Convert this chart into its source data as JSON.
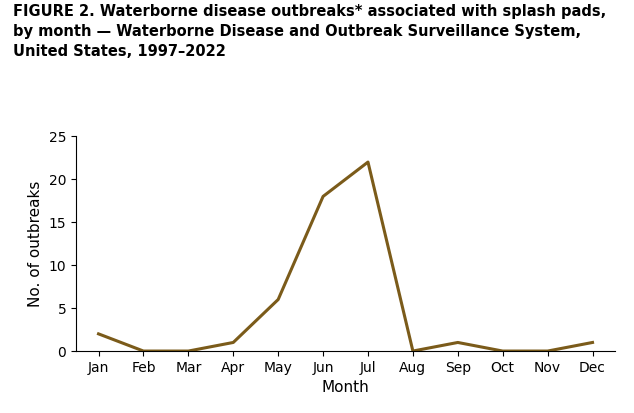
{
  "months": [
    "Jan",
    "Feb",
    "Mar",
    "Apr",
    "May",
    "Jun",
    "Jul",
    "Aug",
    "Sep",
    "Oct",
    "Nov",
    "Dec"
  ],
  "values": [
    2,
    0,
    0,
    1,
    6,
    18,
    22,
    0,
    1,
    0,
    0,
    1
  ],
  "line_color": "#7B5B1A",
  "line_width": 2.2,
  "ylim": [
    0,
    25
  ],
  "yticks": [
    0,
    5,
    10,
    15,
    20,
    25
  ],
  "ylabel": "No. of outbreaks",
  "xlabel": "Month",
  "title_line1": "FIGURE 2. Waterborne disease outbreaks* associated with splash pads,",
  "title_line2": "by month — Waterborne Disease and Outbreak Surveillance System,",
  "title_line3": "United States, 1997–2022",
  "title_fontsize": 10.5,
  "axis_label_fontsize": 11,
  "tick_fontsize": 10,
  "background_color": "#ffffff",
  "fig_width": 6.34,
  "fig_height": 4.13,
  "fig_dpi": 100
}
